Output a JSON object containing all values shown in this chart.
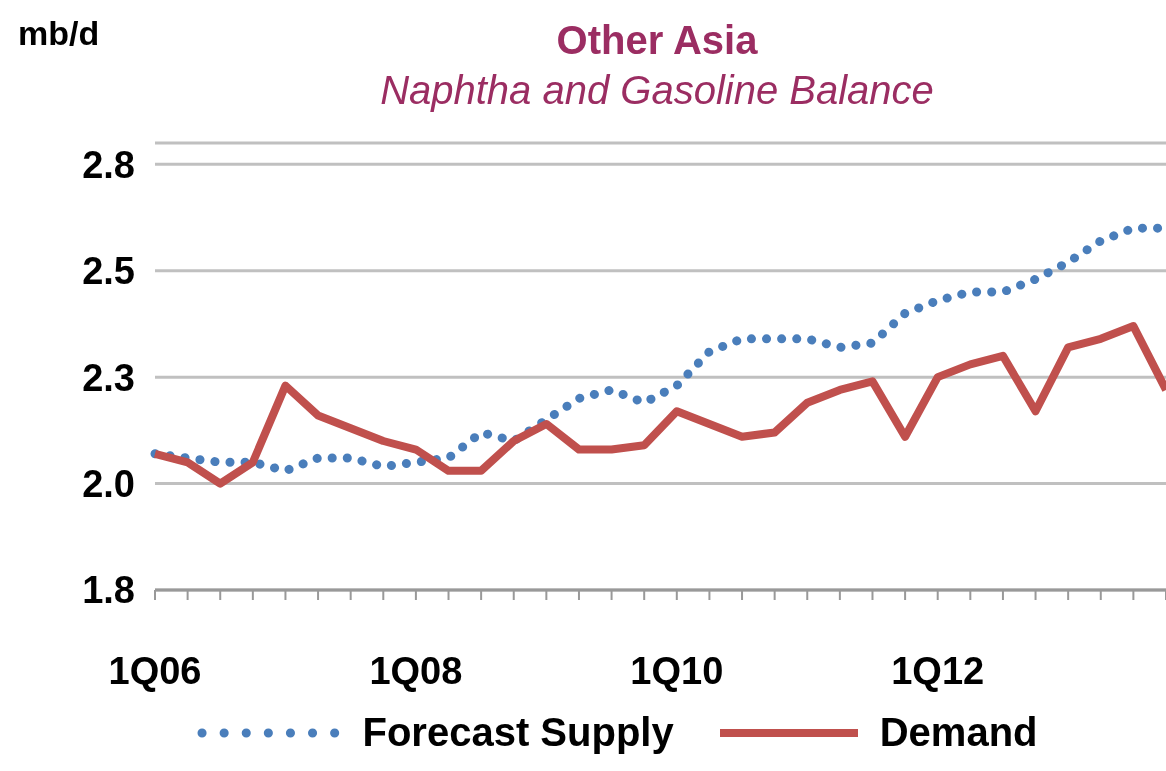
{
  "chart_data": {
    "type": "line",
    "title": "Other Asia",
    "subtitle": "Naphtha and Gasoline Balance",
    "ylabel": "mb/d",
    "categories": [
      "1Q06",
      null,
      null,
      null,
      null,
      null,
      null,
      null,
      "1Q08",
      null,
      null,
      null,
      null,
      null,
      null,
      null,
      "1Q10",
      null,
      null,
      null,
      null,
      null,
      null,
      null,
      "1Q12",
      null,
      null,
      null,
      null,
      null,
      null,
      null
    ],
    "series": [
      {
        "name": "Forecast Supply",
        "color": "#4a7ebb",
        "line_style": "dotted",
        "values": [
          2.07,
          2.06,
          2.05,
          2.05,
          2.03,
          2.06,
          2.06,
          2.04,
          2.05,
          2.06,
          2.12,
          2.1,
          2.15,
          2.2,
          2.22,
          2.19,
          2.23,
          2.31,
          2.34,
          2.34,
          2.34,
          2.32,
          2.33,
          2.4,
          2.43,
          2.45,
          2.45,
          2.48,
          2.52,
          2.57,
          2.6,
          2.6
        ]
      },
      {
        "name": "Demand",
        "color": "#c0504d",
        "line_style": "solid",
        "values": [
          2.07,
          2.05,
          2.0,
          2.05,
          2.23,
          2.16,
          2.13,
          2.1,
          2.08,
          2.03,
          2.03,
          2.1,
          2.14,
          2.08,
          2.08,
          2.09,
          2.17,
          2.14,
          2.11,
          2.12,
          2.19,
          2.22,
          2.24,
          2.11,
          2.25,
          2.28,
          2.3,
          2.17,
          2.32,
          2.34,
          2.37,
          2.22
        ]
      }
    ],
    "ylim": [
      1.75,
      2.8
    ],
    "yticks": [
      {
        "value": 1.75,
        "label": "1.8"
      },
      {
        "value": 2.0,
        "label": "2.0"
      },
      {
        "value": 2.25,
        "label": "2.3"
      },
      {
        "value": 2.5,
        "label": "2.5"
      },
      {
        "value": 2.75,
        "label": "2.8"
      }
    ],
    "grid": "y",
    "legend": "bottom",
    "marker": "none"
  }
}
